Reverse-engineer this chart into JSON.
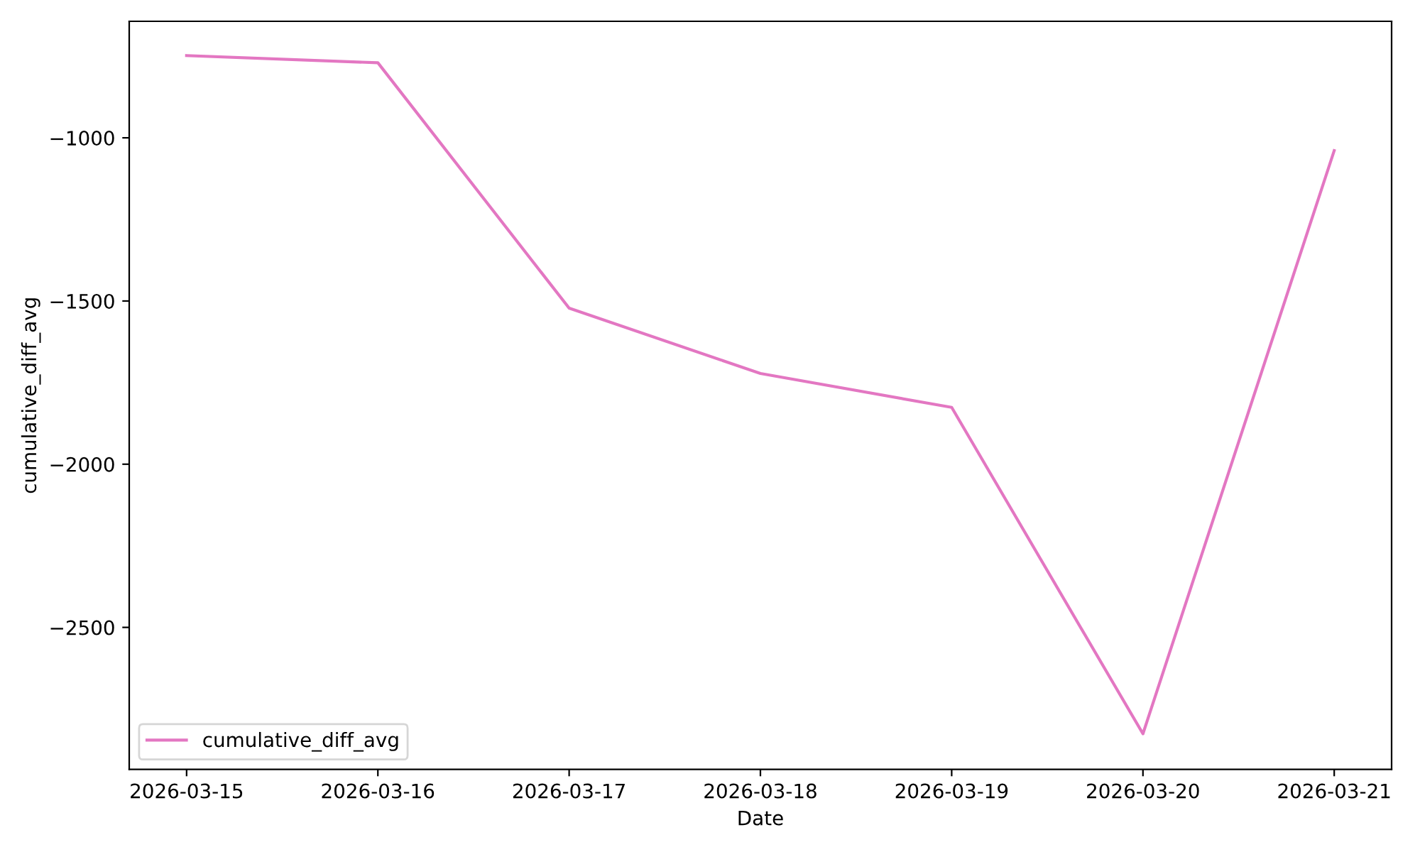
{
  "chart_data": {
    "type": "line",
    "xlabel": "Date",
    "ylabel": "cumulative_diff_avg",
    "x": [
      "2026-03-15",
      "2026-03-16",
      "2026-03-17",
      "2026-03-18",
      "2026-03-19",
      "2026-03-20",
      "2026-03-21"
    ],
    "series": [
      {
        "name": "cumulative_diff_avg",
        "color": "#e377c2",
        "values": [
          -748,
          -770,
          -1522,
          -1722,
          -1826,
          -2826,
          -1039
        ]
      }
    ],
    "xlim": [
      "2026-03-14T16:48",
      "2026-03-21T07:12"
    ],
    "xticks": [
      "2026-03-15",
      "2026-03-16",
      "2026-03-17",
      "2026-03-18",
      "2026-03-19",
      "2026-03-20",
      "2026-03-21"
    ],
    "ylim": [
      -2935,
      -643
    ],
    "yticks": [
      -2500,
      -2000,
      -1500,
      -1000
    ],
    "legend": "lower left",
    "grid": false
  }
}
